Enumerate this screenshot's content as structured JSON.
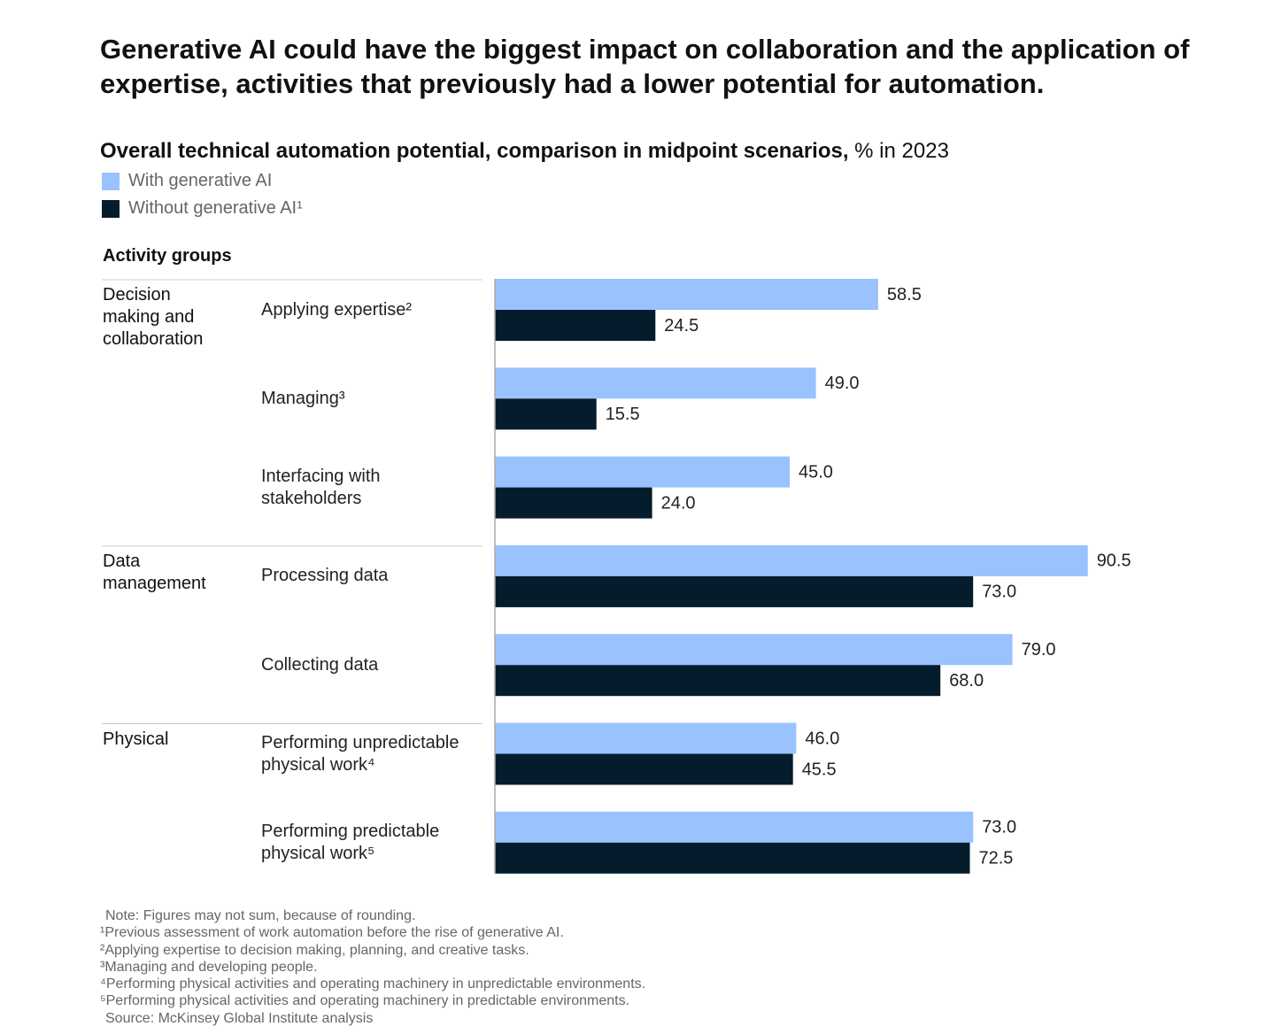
{
  "chart_data": {
    "type": "bar",
    "orientation": "horizontal",
    "title": "Generative AI could have the biggest impact on collaboration and the application of expertise, activities that previously had a lower potential for automation.",
    "subtitle": "Overall technical automation potential, comparison in midpoint scenarios,",
    "subtitle_unit": "% in 2023",
    "category_header": "Activity groups",
    "groups": [
      {
        "name": "Decision making and collaboration",
        "categories": [
          "Applying expertise²",
          "Managing³",
          "Interfacing with stakeholders"
        ]
      },
      {
        "name": "Data management",
        "categories": [
          "Processing data",
          "Collecting data"
        ]
      },
      {
        "name": "Physical",
        "categories": [
          "Performing unpredictable physical work⁴",
          "Performing predictable physical work⁵"
        ]
      }
    ],
    "series": [
      {
        "name": "With generative AI",
        "color": "#99c2ff",
        "values": [
          58.5,
          49.0,
          45.0,
          90.5,
          79.0,
          46.0,
          73.0
        ],
        "value_labels": [
          "58.5",
          "49.0",
          "45.0",
          "90.5",
          "79.0",
          "46.0",
          "73.0"
        ]
      },
      {
        "name": "Without generative AI¹",
        "color": "#051c2c",
        "values": [
          24.5,
          15.5,
          24.0,
          73.0,
          68.0,
          45.5,
          72.5
        ],
        "value_labels": [
          "24.5",
          "15.5",
          "24.0",
          "73.0",
          "68.0",
          "45.5",
          "72.5"
        ]
      }
    ],
    "xlim": [
      0,
      100
    ],
    "notes": [
      "Note: Figures may not sum, because of rounding.",
      "¹Previous assessment of work automation before the rise of generative AI.",
      "²Applying expertise to decision making, planning, and creative tasks.",
      "³Managing and developing people.",
      "⁴Performing physical activities and operating machinery in unpredictable environments.",
      "⁵Performing physical activities and operating machinery in predictable environments.",
      "Source: McKinsey Global Institute analysis"
    ]
  }
}
